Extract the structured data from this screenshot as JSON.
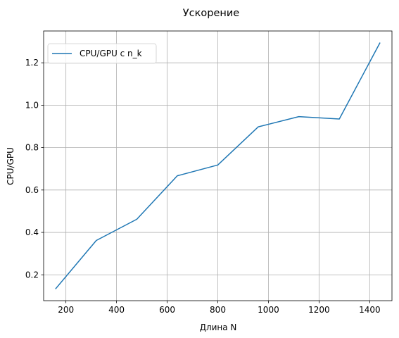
{
  "chart_data": {
    "type": "line",
    "title": "Ускорение",
    "xlabel": "Длина N",
    "ylabel": "CPU/GPU",
    "xlim": [
      112,
      1488
    ],
    "ylim": [
      0.078,
      1.35
    ],
    "xticks": [
      200,
      400,
      600,
      800,
      1000,
      1200,
      1400
    ],
    "yticks": [
      0.2,
      0.4,
      0.6,
      0.8,
      1.0,
      1.2
    ],
    "xtick_labels": [
      "200",
      "400",
      "600",
      "800",
      "1000",
      "1200",
      "1400"
    ],
    "ytick_labels": [
      "0.2",
      "0.4",
      "0.6",
      "0.8",
      "1.0",
      "1.2"
    ],
    "grid": true,
    "legend_position": "top-left",
    "series": [
      {
        "name": "CPU/GPU с n_k",
        "color": "#1f77b4",
        "x": [
          160,
          320,
          480,
          640,
          800,
          960,
          1120,
          1280,
          1440
        ],
        "y": [
          0.135,
          0.362,
          0.462,
          0.667,
          0.718,
          0.898,
          0.946,
          0.935,
          1.293
        ]
      }
    ]
  }
}
